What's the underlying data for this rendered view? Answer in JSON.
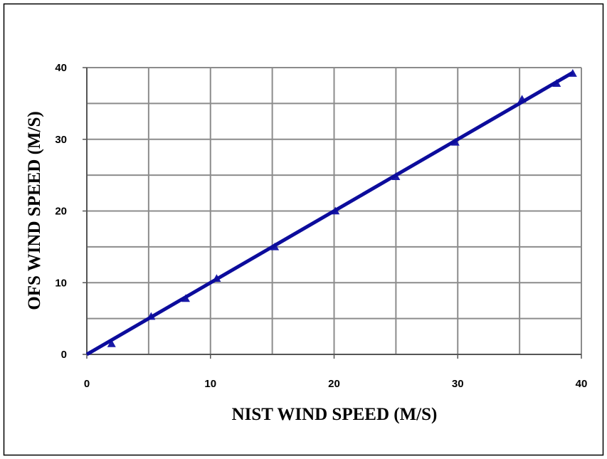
{
  "chart_data": {
    "type": "scatter",
    "xlabel": "NIST WIND SPEED (M/S)",
    "ylabel": "OFS WIND SPEED (M/S)",
    "xlim": [
      0,
      40
    ],
    "ylim": [
      0,
      40
    ],
    "xticks": [
      0,
      10,
      20,
      30,
      40
    ],
    "yticks": [
      0,
      10,
      20,
      30,
      40
    ],
    "x_minor_ticks": [
      5,
      15,
      25,
      35
    ],
    "y_minor_ticks": [
      5,
      15,
      25,
      35
    ],
    "grid": true,
    "series": [
      {
        "marker": "triangle",
        "color": "#1a1aa8",
        "x": [
          2,
          5.2,
          8,
          10.5,
          15.2,
          20.1,
          25,
          29.8,
          35.2,
          38,
          39.3
        ],
        "values": [
          1.5,
          5.3,
          7.8,
          10.6,
          15,
          20,
          24.8,
          29.6,
          35.6,
          37.8,
          39.2
        ]
      },
      {
        "marker": "line",
        "color": "#0c0c9c",
        "x": [
          0,
          39.3
        ],
        "values": [
          0,
          39.3
        ]
      }
    ]
  }
}
